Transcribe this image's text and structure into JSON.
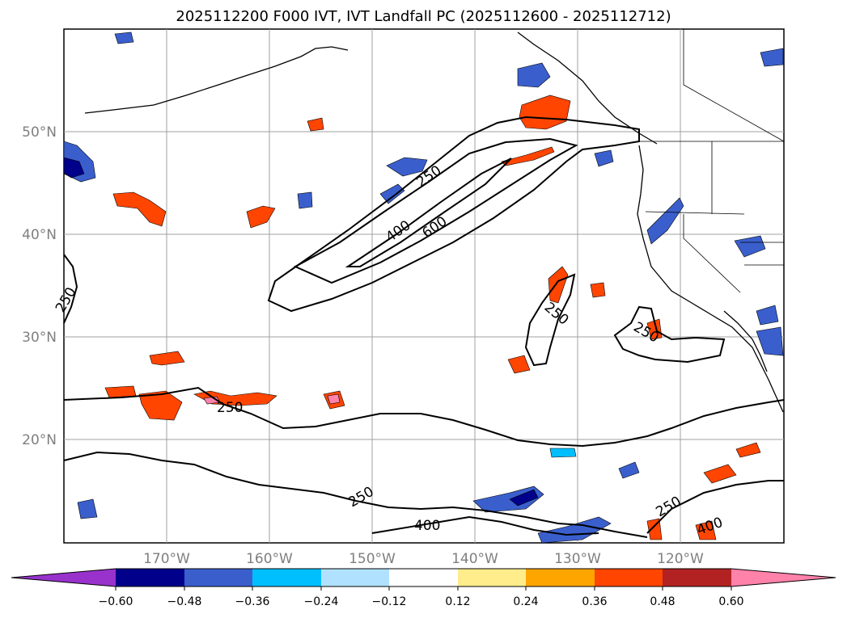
{
  "title": "2025112200 F000 IVT, IVT Landfall PC (2025112600 - 2025112712)",
  "latitude_labels": [
    "50°N",
    "40°N",
    "30°N",
    "20°N"
  ],
  "longitude_labels": [
    "170°W",
    "160°W",
    "150°W",
    "140°W",
    "130°W",
    "120°W"
  ],
  "colorbar": {
    "ticks": [
      "−0.60",
      "−0.48",
      "−0.36",
      "−0.24",
      "−0.12",
      "0.12",
      "0.24",
      "0.36",
      "0.48",
      "0.60"
    ],
    "colors": [
      "#9932cc",
      "#00008b",
      "#3a5fcd",
      "#00bfff",
      "#b0e2ff",
      "#ffffff",
      "#ffec8b",
      "#ffa500",
      "#ff4500",
      "#b22222",
      "#ff82ab"
    ]
  },
  "contour_labels": [
    "250",
    "400",
    "600",
    "250",
    "250",
    "250",
    "250",
    "250",
    "400",
    "250",
    "400"
  ]
}
